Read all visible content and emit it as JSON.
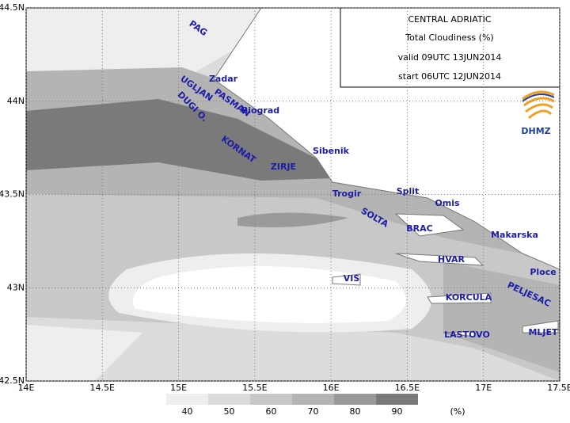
{
  "header": {
    "lines": [
      "CENTRAL ADRIATIC",
      "Total Cloudiness (%)",
      "valid 09UTC 13JUN2014",
      "start 06UTC 12JUN2014"
    ],
    "logo": "DHMZ"
  },
  "map": {
    "xlim": [
      14,
      17.5
    ],
    "ylim": [
      42.5,
      44.5
    ],
    "xticks": [
      {
        "value": 14,
        "label": "14E"
      },
      {
        "value": 14.5,
        "label": "14.5E"
      },
      {
        "value": 15,
        "label": "15E"
      },
      {
        "value": 15.5,
        "label": "15.5E"
      },
      {
        "value": 16,
        "label": "16E"
      },
      {
        "value": 16.5,
        "label": "16.5E"
      },
      {
        "value": 17,
        "label": "17E"
      },
      {
        "value": 17.5,
        "label": "17.5E"
      }
    ],
    "yticks": [
      {
        "value": 42.5,
        "label": "42.5N"
      },
      {
        "value": 43,
        "label": "43N"
      },
      {
        "value": 43.5,
        "label": "43.5N"
      },
      {
        "value": 44,
        "label": "44N"
      },
      {
        "value": 44.5,
        "label": "44.5N"
      }
    ],
    "places": [
      "PAG",
      "Zadar",
      "UGLJAN",
      "PASMAN",
      "Biograd",
      "DUGI O.",
      "KORNAT",
      "Sibenik",
      "ZIRJE",
      "Trogir",
      "Split",
      "Omis",
      "SOLTA",
      "BRAC",
      "Makarska",
      "HVAR",
      "Ploce",
      "VIS",
      "PELJESAC",
      "KORCULA",
      "LASTOVO",
      "MLJET"
    ]
  },
  "legend": {
    "levels": [
      40,
      50,
      60,
      70,
      80,
      90
    ],
    "colors": [
      "#eeeeee",
      "#dcdcdc",
      "#c8c8c8",
      "#b4b4b4",
      "#9a9a9a",
      "#7a7a7a"
    ],
    "unit": "(%)"
  }
}
